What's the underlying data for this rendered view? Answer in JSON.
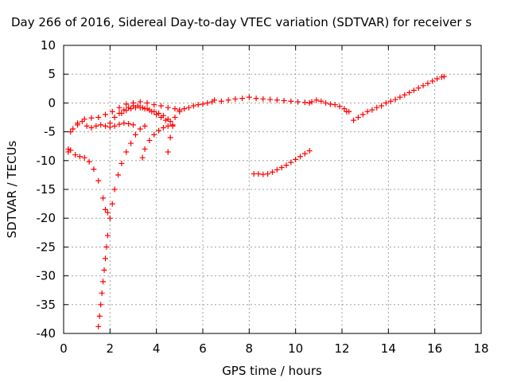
{
  "chart_data": {
    "type": "scatter",
    "title": "Day 266 of 2016, Sidereal Day-to-day VTEC variation (SDTVAR) for receiver s",
    "xlabel": "GPS time / hours",
    "ylabel": "SDTVAR / TECUs",
    "xlim": [
      0,
      18
    ],
    "ylim": [
      -40,
      10
    ],
    "xticks": [
      "0",
      "2",
      "4",
      "6",
      "8",
      "10",
      "12",
      "14",
      "16",
      "18"
    ],
    "yticks": [
      "10",
      "5",
      "0",
      "-5",
      "-10",
      "-15",
      "-20",
      "-25",
      "-30",
      "-35",
      "-40"
    ],
    "grid": true,
    "marker": "plus",
    "color": "#ff0000",
    "series": [
      {
        "x": [
          0.2,
          0.3,
          0.5,
          0.7,
          0.9,
          1.1,
          1.3,
          1.5,
          1.7,
          1.8,
          1.9
        ],
        "y": [
          -8.5,
          -8.2,
          -9.0,
          -9.3,
          -9.5,
          -10.2,
          -11.5,
          -13.5,
          -16.5,
          -18.5,
          -19.0
        ]
      },
      {
        "x": [
          0.2,
          0.4,
          0.6,
          0.8,
          1.0,
          1.2,
          1.4,
          1.6,
          1.8,
          2.0,
          2.2,
          2.4,
          2.6,
          2.8,
          3.0
        ],
        "y": [
          -8.0,
          -4.5,
          -3.5,
          -3.2,
          -4.0,
          -4.3,
          -4.0,
          -3.8,
          -4.0,
          -4.2,
          -4.0,
          -3.7,
          -3.5,
          -3.6,
          -3.8
        ]
      },
      {
        "x": [
          0.3,
          0.6,
          0.9,
          1.2,
          1.5,
          1.8,
          2.1,
          2.4,
          2.7,
          3.0,
          3.3,
          3.6,
          3.9,
          4.2,
          4.5,
          4.8,
          5.0
        ],
        "y": [
          -5.0,
          -3.8,
          -2.8,
          -2.6,
          -2.5,
          -2.0,
          -1.5,
          -0.8,
          -0.2,
          0.0,
          0.2,
          0.0,
          -0.3,
          -0.5,
          -0.8,
          -1.0,
          -1.2
        ]
      },
      {
        "x": [
          1.5,
          1.55,
          1.6,
          1.65,
          1.7,
          1.75,
          1.8,
          1.85,
          1.9,
          2.0,
          2.1,
          2.2,
          2.35,
          2.5,
          2.7,
          2.9,
          3.1,
          3.3,
          3.5
        ],
        "y": [
          -38.8,
          -37.0,
          -35.0,
          -33.0,
          -31.0,
          -29.0,
          -27.0,
          -25.0,
          -23.0,
          -20.0,
          -17.5,
          -15.0,
          -12.5,
          -10.5,
          -8.5,
          -7.0,
          -5.5,
          -4.5,
          -4.0
        ]
      },
      {
        "x": [
          2.0,
          2.2,
          2.4,
          2.6,
          2.8,
          3.0,
          3.2,
          3.4,
          3.6,
          3.8,
          4.0,
          4.2,
          4.4,
          4.6
        ],
        "y": [
          -3.5,
          -2.5,
          -1.8,
          -1.2,
          -0.8,
          -0.5,
          -0.5,
          -0.8,
          -1.0,
          -1.5,
          -2.0,
          -2.5,
          -3.0,
          -3.2
        ]
      },
      {
        "x": [
          2.5,
          2.7,
          2.9,
          3.1,
          3.3,
          3.5,
          3.7,
          3.9,
          4.1,
          4.3,
          4.5
        ],
        "y": [
          -1.8,
          -1.3,
          -1.0,
          -0.8,
          -0.8,
          -1.0,
          -1.2,
          -1.5,
          -1.8,
          -2.2,
          -2.8
        ]
      },
      {
        "x": [
          3.4,
          3.5,
          3.7,
          3.9,
          4.1,
          4.3,
          4.5,
          4.7
        ],
        "y": [
          -9.5,
          -8.0,
          -6.5,
          -5.5,
          -4.8,
          -4.3,
          -4.0,
          -3.8
        ]
      },
      {
        "x": [
          4.5,
          4.6,
          4.7,
          4.8,
          5.0,
          5.2,
          5.4,
          5.6,
          5.8,
          6.0,
          6.2,
          6.4
        ],
        "y": [
          -8.5,
          -6.0,
          -4.0,
          -2.5,
          -1.5,
          -1.0,
          -0.8,
          -0.5,
          -0.3,
          -0.2,
          0.0,
          0.2
        ]
      },
      {
        "x": [
          6.5,
          6.8,
          7.1,
          7.4,
          7.7,
          8.0,
          8.3,
          8.6,
          8.9,
          9.2,
          9.5,
          9.8,
          10.1,
          10.4,
          10.6
        ],
        "y": [
          0.5,
          0.3,
          0.5,
          0.7,
          0.8,
          1.0,
          0.8,
          0.7,
          0.6,
          0.5,
          0.4,
          0.3,
          0.2,
          0.1,
          0.0
        ]
      },
      {
        "x": [
          10.7,
          10.9,
          11.1,
          11.3,
          11.5,
          11.7,
          11.9,
          12.1,
          12.2
        ],
        "y": [
          0.2,
          0.5,
          0.3,
          0.0,
          -0.2,
          -0.3,
          -0.6,
          -1.0,
          -1.5
        ]
      },
      {
        "x": [
          12.3,
          12.5,
          12.7,
          12.9,
          13.1,
          13.3,
          13.5,
          13.7,
          13.9,
          14.1,
          14.3,
          14.5,
          14.7,
          14.9,
          15.1,
          15.3,
          15.5,
          15.7,
          15.9,
          16.1,
          16.3,
          16.4
        ],
        "y": [
          -1.5,
          -3.0,
          -2.5,
          -2.0,
          -1.5,
          -1.2,
          -0.8,
          -0.5,
          0.0,
          0.3,
          0.6,
          1.0,
          1.4,
          1.8,
          2.2,
          2.6,
          3.0,
          3.4,
          3.8,
          4.2,
          4.5,
          4.6
        ]
      },
      {
        "x": [
          8.2,
          8.4,
          8.6,
          8.8,
          9.0,
          9.2,
          9.4,
          9.6,
          9.8,
          10.0,
          10.2,
          10.4,
          10.6
        ],
        "y": [
          -12.3,
          -12.3,
          -12.4,
          -12.3,
          -12.0,
          -11.6,
          -11.2,
          -10.8,
          -10.3,
          -9.8,
          -9.3,
          -8.8,
          -8.3
        ]
      }
    ]
  }
}
